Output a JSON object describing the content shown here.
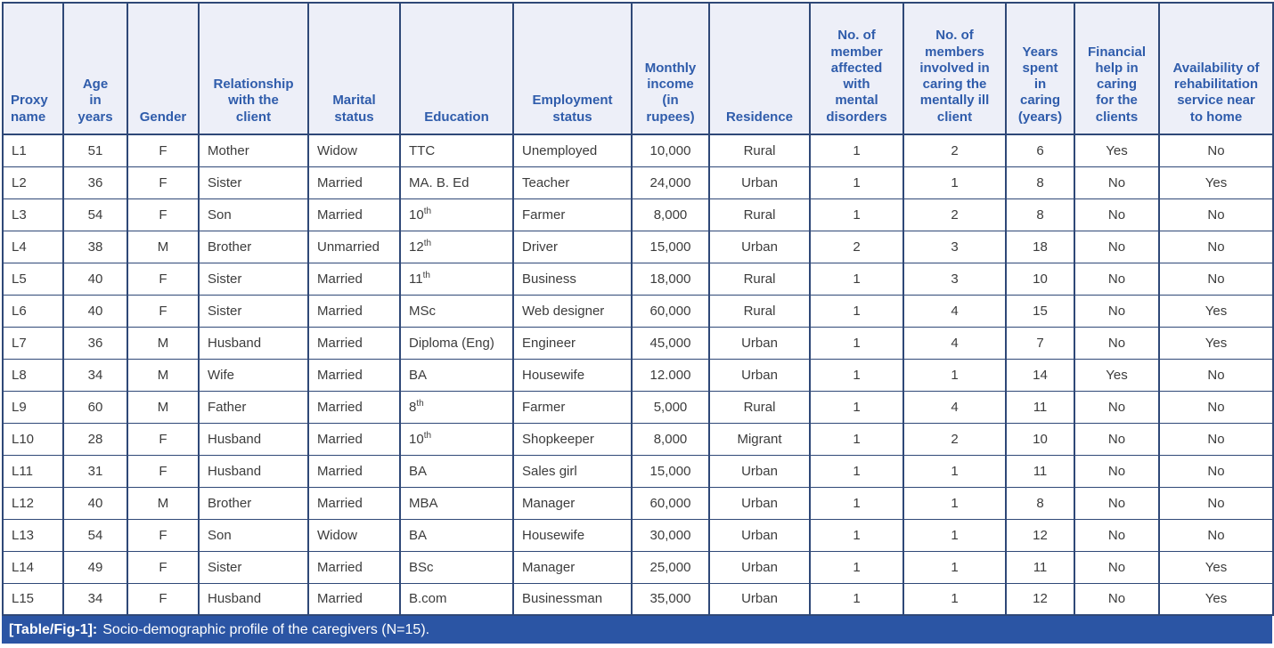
{
  "table": {
    "columns": [
      {
        "id": "proxy_name",
        "label": "Proxy\nname"
      },
      {
        "id": "age_in_years",
        "label": "Age\nin\nyears"
      },
      {
        "id": "gender",
        "label": "Gender"
      },
      {
        "id": "relationship_with_the_client",
        "label": "Relationship\nwith the\nclient"
      },
      {
        "id": "marital_status",
        "label": "Marital\nstatus"
      },
      {
        "id": "education",
        "label": "Education"
      },
      {
        "id": "employment_status",
        "label": "Employment\nstatus"
      },
      {
        "id": "monthly_income_in_rupees",
        "label": "Monthly\nincome\n(in\nrupees)"
      },
      {
        "id": "residence",
        "label": "Residence"
      },
      {
        "id": "no_of_member_affected_with_mental_disorders",
        "label": "No. of\nmember\naffected\nwith\nmental\ndisorders"
      },
      {
        "id": "no_of_members_involved_in_caring_the_mentally_ill_client",
        "label": "No. of\nmembers\ninvolved in\ncaring the\nmentally ill\nclient"
      },
      {
        "id": "years_spent_in_caring_years",
        "label": "Years\nspent\nin\ncaring\n(years)"
      },
      {
        "id": "financial_help_in_caring_for_the_clients",
        "label": "Financial\nhelp in\ncaring\nfor the\nclients"
      },
      {
        "id": "availability_of_rehabilitation_service_near_to_home",
        "label": "Availability of\nrehabilitation\nservice near\nto home"
      }
    ],
    "rows": [
      [
        "L1",
        "51",
        "F",
        "Mother",
        "Widow",
        "TTC",
        "Unemployed",
        "10,000",
        "Rural",
        "1",
        "2",
        "6",
        "Yes",
        "No"
      ],
      [
        "L2",
        "36",
        "F",
        "Sister",
        "Married",
        "MA. B. Ed",
        "Teacher",
        "24,000",
        "Urban",
        "1",
        "1",
        "8",
        "No",
        "Yes"
      ],
      [
        "L3",
        "54",
        "F",
        "Son",
        "Married",
        "10^th",
        "Farmer",
        "8,000",
        "Rural",
        "1",
        "2",
        "8",
        "No",
        "No"
      ],
      [
        "L4",
        "38",
        "M",
        "Brother",
        "Unmarried",
        "12^th",
        "Driver",
        "15,000",
        "Urban",
        "2",
        "3",
        "18",
        "No",
        "No"
      ],
      [
        "L5",
        "40",
        "F",
        "Sister",
        "Married",
        "11^th",
        "Business",
        "18,000",
        "Rural",
        "1",
        "3",
        "10",
        "No",
        "No"
      ],
      [
        "L6",
        "40",
        "F",
        "Sister",
        "Married",
        "MSc",
        "Web designer",
        "60,000",
        "Rural",
        "1",
        "4",
        "15",
        "No",
        "Yes"
      ],
      [
        "L7",
        "36",
        "M",
        "Husband",
        "Married",
        "Diploma (Eng)",
        "Engineer",
        "45,000",
        "Urban",
        "1",
        "4",
        "7",
        "No",
        "Yes"
      ],
      [
        "L8",
        "34",
        "M",
        "Wife",
        "Married",
        "BA",
        "Housewife",
        "12.000",
        "Urban",
        "1",
        "1",
        "14",
        "Yes",
        "No"
      ],
      [
        "L9",
        "60",
        "M",
        "Father",
        "Married",
        "8^th",
        "Farmer",
        "5,000",
        "Rural",
        "1",
        "4",
        "11",
        "No",
        "No"
      ],
      [
        "L10",
        "28",
        "F",
        "Husband",
        "Married",
        "10^th",
        "Shopkeeper",
        "8,000",
        "Migrant",
        "1",
        "2",
        "10",
        "No",
        "No"
      ],
      [
        "L11",
        "31",
        "F",
        "Husband",
        "Married",
        "BA",
        "Sales girl",
        "15,000",
        "Urban",
        "1",
        "1",
        "11",
        "No",
        "No"
      ],
      [
        "L12",
        "40",
        "M",
        "Brother",
        "Married",
        "MBA",
        "Manager",
        "60,000",
        "Urban",
        "1",
        "1",
        "8",
        "No",
        "No"
      ],
      [
        "L13",
        "54",
        "F",
        "Son",
        "Widow",
        "BA",
        "Housewife",
        "30,000",
        "Urban",
        "1",
        "1",
        "12",
        "No",
        "No"
      ],
      [
        "L14",
        "49",
        "F",
        "Sister",
        "Married",
        "BSc",
        "Manager",
        "25,000",
        "Urban",
        "1",
        "1",
        "11",
        "No",
        "Yes"
      ],
      [
        "L15",
        "34",
        "F",
        "Husband",
        "Married",
        "B.com",
        "Businessman",
        "35,000",
        "Urban",
        "1",
        "1",
        "12",
        "No",
        "Yes"
      ]
    ]
  },
  "caption": {
    "label": "[Table/Fig-1]:",
    "text": "Socio-demographic profile of the caregivers (N=15)."
  },
  "colors": {
    "header_bg": "#edeff8",
    "header_text": "#2f5cab",
    "border": "#2f4877",
    "body_text": "#3c3c3c",
    "caption_bg": "#2b55a4",
    "caption_text": "#ffffff"
  }
}
